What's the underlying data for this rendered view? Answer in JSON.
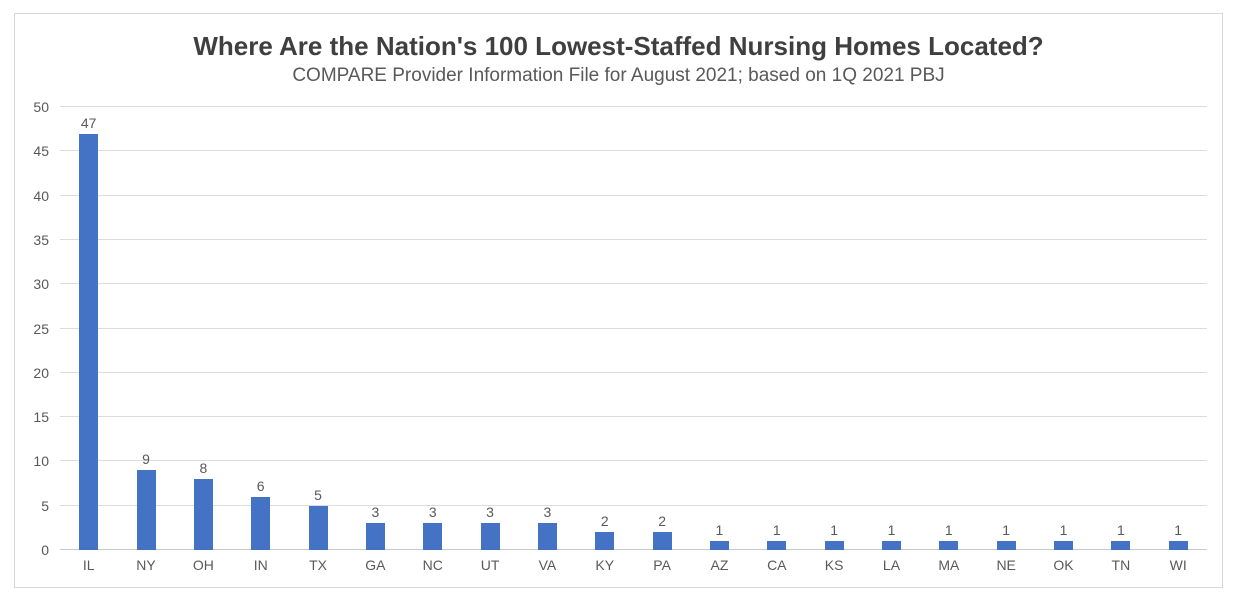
{
  "chart_data": {
    "type": "bar",
    "title": "Where Are the Nation's 100 Lowest-Staffed Nursing Homes Located?",
    "subtitle": "COMPARE Provider Information File for August 2021; based on 1Q 2021 PBJ",
    "categories": [
      "IL",
      "NY",
      "OH",
      "IN",
      "TX",
      "GA",
      "NC",
      "UT",
      "VA",
      "KY",
      "PA",
      "AZ",
      "CA",
      "KS",
      "LA",
      "MA",
      "NE",
      "OK",
      "TN",
      "WI"
    ],
    "values": [
      47,
      9,
      8,
      6,
      5,
      3,
      3,
      3,
      3,
      2,
      2,
      1,
      1,
      1,
      1,
      1,
      1,
      1,
      1,
      1
    ],
    "y_ticks": [
      0,
      5,
      10,
      15,
      20,
      25,
      30,
      35,
      40,
      45,
      50
    ],
    "ylim": [
      0,
      50
    ],
    "xlabel": "",
    "ylabel": "",
    "grid": "horizontal",
    "legend_position": "none",
    "data_labels_shown": true,
    "colors": {
      "bar": "#4472C4",
      "gridline": "#DCDCDC",
      "axis_line": "#C9C9C9",
      "title": "#3F3F3F",
      "subtitle": "#595959",
      "labels": "#595959",
      "frame_border": "#D7D7D7"
    }
  }
}
